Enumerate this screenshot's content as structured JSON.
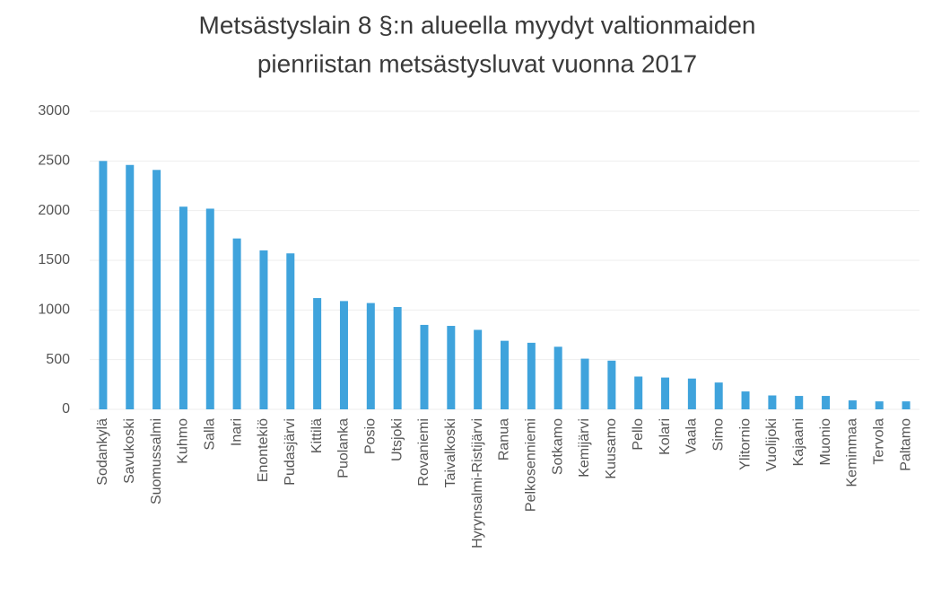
{
  "chart_data": {
    "type": "bar",
    "title": [
      "Metsästyslain 8 §:n alueella myydyt valtionmaiden",
      "pienriistan metsästysluvat vuonna 2017"
    ],
    "categories": [
      "Sodankylä",
      "Savukoski",
      "Suomussalmi",
      "Kuhmo",
      "Salla",
      "Inari",
      "Enontekiö",
      "Pudasjärvi",
      "Kittilä",
      "Puolanka",
      "Posio",
      "Utsjoki",
      "Rovaniemi",
      "Taivalkoski",
      "Hyrynsalmi-Ristijärvi",
      "Ranua",
      "Pelkosenniemi",
      "Sotkamo",
      "Kemijärvi",
      "Kuusamo",
      "Pello",
      "Kolari",
      "Vaala",
      "Simo",
      "Ylitornio",
      "Vuolijoki",
      "Kajaani",
      "Muonio",
      "Keminmaa",
      "Tervola",
      "Paltamo"
    ],
    "values": [
      2500,
      2460,
      2410,
      2040,
      2020,
      1720,
      1600,
      1570,
      1120,
      1090,
      1070,
      1030,
      850,
      840,
      800,
      690,
      670,
      630,
      510,
      490,
      330,
      320,
      310,
      270,
      180,
      140,
      135,
      135,
      90,
      80,
      80
    ],
    "color": "#3fa3dc",
    "ylim": [
      0,
      3000
    ],
    "yticks": [
      0,
      500,
      1000,
      1500,
      2000,
      2500,
      3000
    ],
    "grid": true
  }
}
